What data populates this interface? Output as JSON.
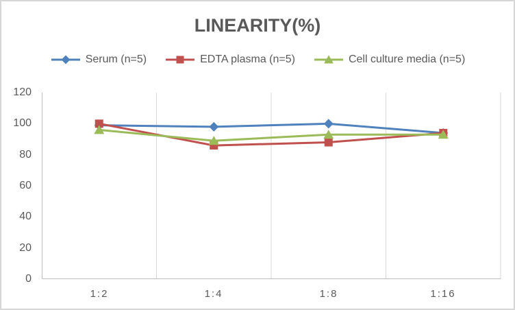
{
  "title": {
    "text": "LINEARITY(%)"
  },
  "chart_data": {
    "type": "line",
    "title": "LINEARITY(%)",
    "categories": [
      "1:2",
      "1:4",
      "1:8",
      "1:16"
    ],
    "series": [
      {
        "name": "Serum (n=5)",
        "marker": "diamond",
        "color": "#4F81BD",
        "values": [
          99,
          98,
          100,
          94
        ]
      },
      {
        "name": "EDTA plasma (n=5)",
        "marker": "square",
        "color": "#C0504D",
        "values": [
          100,
          86,
          88,
          94
        ]
      },
      {
        "name": "Cell culture media (n=5)",
        "marker": "triangle",
        "color": "#9BBB59",
        "values": [
          96,
          89,
          93,
          93
        ]
      }
    ],
    "xlabel": "",
    "ylabel": "",
    "ylim": [
      0,
      120
    ],
    "yticks": [
      0,
      20,
      40,
      60,
      80,
      100,
      120
    ],
    "grid": "vertical-only",
    "gridline_color": "#D9D9D9",
    "axis_color": "#BFBFBF",
    "text_color": "#595959",
    "legend_position": "top"
  }
}
